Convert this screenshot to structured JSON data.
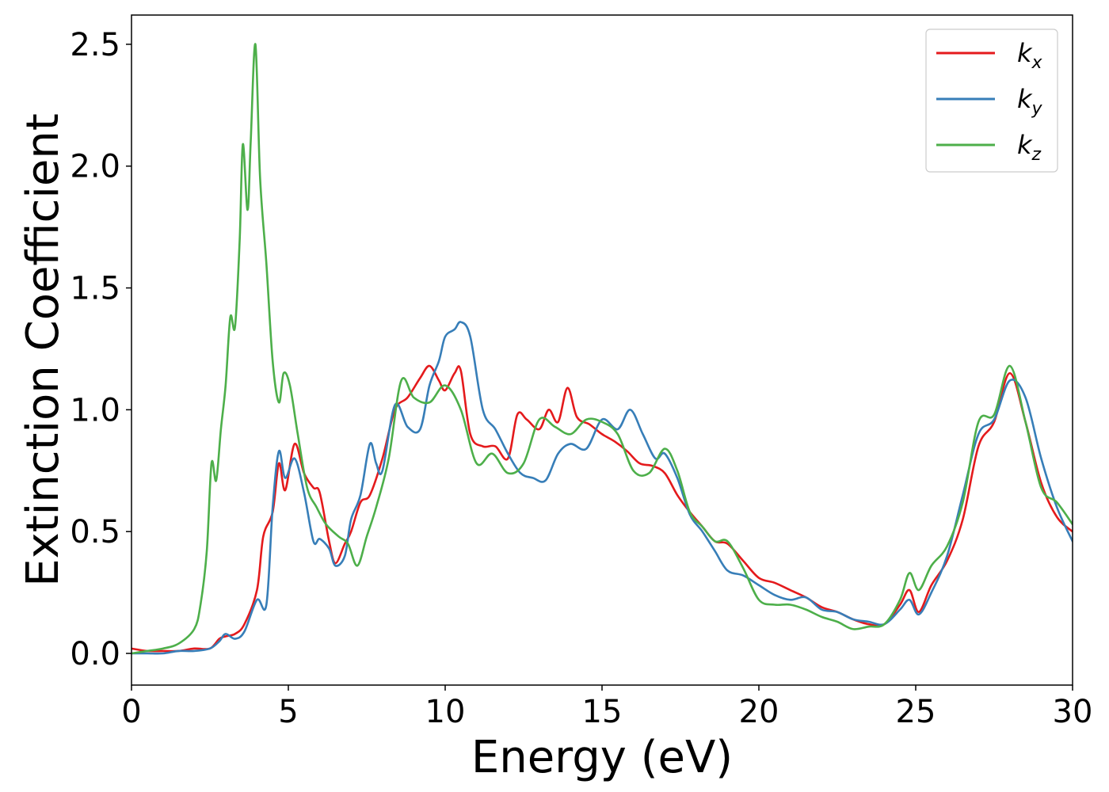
{
  "chart_data": {
    "type": "line",
    "xlabel": "Energy (eV)",
    "ylabel": "Extinction Coefficient",
    "xlim": [
      0,
      30
    ],
    "ylim": [
      -0.13,
      2.62
    ],
    "xticks": [
      0,
      5,
      10,
      15,
      20,
      25,
      30
    ],
    "yticks": [
      0.0,
      0.5,
      1.0,
      1.5,
      2.0,
      2.5
    ],
    "grid": false,
    "legend_position": "top-right",
    "series": [
      {
        "name": "k",
        "sub": "x",
        "color": "#e41a1c",
        "x": [
          0,
          0.5,
          1,
          1.5,
          2,
          2.5,
          2.8,
          3,
          3.3,
          3.6,
          4,
          4.2,
          4.5,
          4.7,
          4.9,
          5.2,
          5.5,
          5.8,
          6,
          6.3,
          6.5,
          6.8,
          7,
          7.3,
          7.6,
          8,
          8.4,
          8.8,
          9.2,
          9.5,
          9.8,
          10,
          10.3,
          10.5,
          10.8,
          11.2,
          11.6,
          12,
          12.3,
          12.6,
          13,
          13.3,
          13.6,
          13.9,
          14.2,
          14.6,
          15,
          15.4,
          15.8,
          16.2,
          16.6,
          17,
          17.4,
          17.8,
          18.2,
          18.6,
          19,
          19.5,
          20,
          20.5,
          21,
          21.5,
          22,
          22.5,
          23,
          23.5,
          24,
          24.5,
          24.8,
          25.1,
          25.5,
          26,
          26.5,
          27,
          27.5,
          28,
          28.5,
          29,
          29.5,
          30
        ],
        "y": [
          0.02,
          0.01,
          0.01,
          0.01,
          0.02,
          0.02,
          0.06,
          0.07,
          0.08,
          0.12,
          0.26,
          0.48,
          0.58,
          0.78,
          0.67,
          0.86,
          0.74,
          0.68,
          0.66,
          0.46,
          0.37,
          0.45,
          0.5,
          0.62,
          0.65,
          0.8,
          1.0,
          1.05,
          1.13,
          1.18,
          1.12,
          1.08,
          1.15,
          1.16,
          0.9,
          0.85,
          0.85,
          0.8,
          0.98,
          0.96,
          0.92,
          1.0,
          0.95,
          1.09,
          0.97,
          0.94,
          0.9,
          0.87,
          0.83,
          0.78,
          0.77,
          0.74,
          0.65,
          0.58,
          0.52,
          0.46,
          0.45,
          0.38,
          0.31,
          0.29,
          0.26,
          0.23,
          0.19,
          0.17,
          0.14,
          0.12,
          0.12,
          0.2,
          0.26,
          0.17,
          0.28,
          0.38,
          0.55,
          0.85,
          0.95,
          1.15,
          0.95,
          0.7,
          0.56,
          0.5
        ]
      },
      {
        "name": "k",
        "sub": "y",
        "color": "#377eb8",
        "x": [
          0,
          0.5,
          1,
          1.5,
          2,
          2.5,
          2.8,
          3,
          3.3,
          3.6,
          4,
          4.3,
          4.5,
          4.7,
          4.9,
          5.2,
          5.5,
          5.8,
          6,
          6.3,
          6.5,
          6.8,
          7,
          7.3,
          7.6,
          7.8,
          8,
          8.4,
          8.8,
          9.2,
          9.5,
          9.8,
          10,
          10.3,
          10.5,
          10.8,
          11.2,
          11.6,
          12,
          12.4,
          12.8,
          13.2,
          13.6,
          14,
          14.5,
          15,
          15.5,
          15.9,
          16.3,
          16.7,
          17,
          17.4,
          17.8,
          18.2,
          18.6,
          19,
          19.5,
          20,
          20.5,
          21,
          21.5,
          22,
          22.5,
          23,
          23.5,
          24,
          24.5,
          24.8,
          25.1,
          25.5,
          26,
          26.5,
          27,
          27.5,
          28,
          28.5,
          29,
          29.5,
          30
        ],
        "y": [
          0.0,
          0.0,
          0.0,
          0.01,
          0.01,
          0.02,
          0.05,
          0.08,
          0.06,
          0.09,
          0.22,
          0.2,
          0.6,
          0.83,
          0.72,
          0.8,
          0.66,
          0.46,
          0.47,
          0.43,
          0.36,
          0.4,
          0.55,
          0.65,
          0.86,
          0.78,
          0.75,
          1.02,
          0.93,
          0.92,
          1.1,
          1.2,
          1.3,
          1.33,
          1.36,
          1.3,
          1.0,
          0.92,
          0.82,
          0.74,
          0.72,
          0.71,
          0.82,
          0.86,
          0.84,
          0.96,
          0.92,
          1.0,
          0.9,
          0.8,
          0.82,
          0.72,
          0.57,
          0.5,
          0.42,
          0.34,
          0.32,
          0.28,
          0.24,
          0.22,
          0.23,
          0.18,
          0.17,
          0.14,
          0.13,
          0.12,
          0.18,
          0.22,
          0.16,
          0.25,
          0.4,
          0.65,
          0.9,
          0.96,
          1.12,
          1.05,
          0.8,
          0.6,
          0.46
        ]
      },
      {
        "name": "k",
        "sub": "z",
        "color": "#4daf4a",
        "x": [
          0,
          0.5,
          1,
          1.5,
          2,
          2.2,
          2.4,
          2.55,
          2.7,
          2.85,
          3,
          3.15,
          3.3,
          3.45,
          3.55,
          3.7,
          3.8,
          3.95,
          4.1,
          4.3,
          4.5,
          4.7,
          4.85,
          5.05,
          5.3,
          5.6,
          5.9,
          6.2,
          6.6,
          6.9,
          7.2,
          7.5,
          7.8,
          8.2,
          8.6,
          9,
          9.5,
          10,
          10.5,
          11,
          11.5,
          12,
          12.5,
          13,
          13.5,
          14,
          14.5,
          15,
          15.5,
          16,
          16.5,
          17,
          17.4,
          17.8,
          18.2,
          18.6,
          19,
          19.5,
          20,
          20.5,
          21,
          21.5,
          22,
          22.5,
          23,
          23.5,
          24,
          24.5,
          24.8,
          25.1,
          25.5,
          26,
          26.5,
          27,
          27.5,
          28,
          28.5,
          29,
          29.5,
          30
        ],
        "y": [
          0.0,
          0.01,
          0.02,
          0.04,
          0.1,
          0.2,
          0.42,
          0.78,
          0.71,
          0.92,
          1.1,
          1.38,
          1.34,
          1.7,
          2.09,
          1.82,
          2.1,
          2.5,
          1.95,
          1.6,
          1.2,
          1.03,
          1.15,
          1.1,
          0.9,
          0.68,
          0.6,
          0.53,
          0.48,
          0.45,
          0.36,
          0.48,
          0.6,
          0.8,
          1.12,
          1.05,
          1.03,
          1.1,
          1.0,
          0.78,
          0.82,
          0.74,
          0.78,
          0.96,
          0.93,
          0.9,
          0.96,
          0.95,
          0.9,
          0.75,
          0.74,
          0.84,
          0.75,
          0.58,
          0.52,
          0.46,
          0.46,
          0.35,
          0.22,
          0.2,
          0.2,
          0.18,
          0.15,
          0.13,
          0.1,
          0.11,
          0.12,
          0.22,
          0.33,
          0.26,
          0.36,
          0.44,
          0.62,
          0.95,
          0.98,
          1.18,
          0.95,
          0.68,
          0.62,
          0.53
        ]
      }
    ]
  }
}
